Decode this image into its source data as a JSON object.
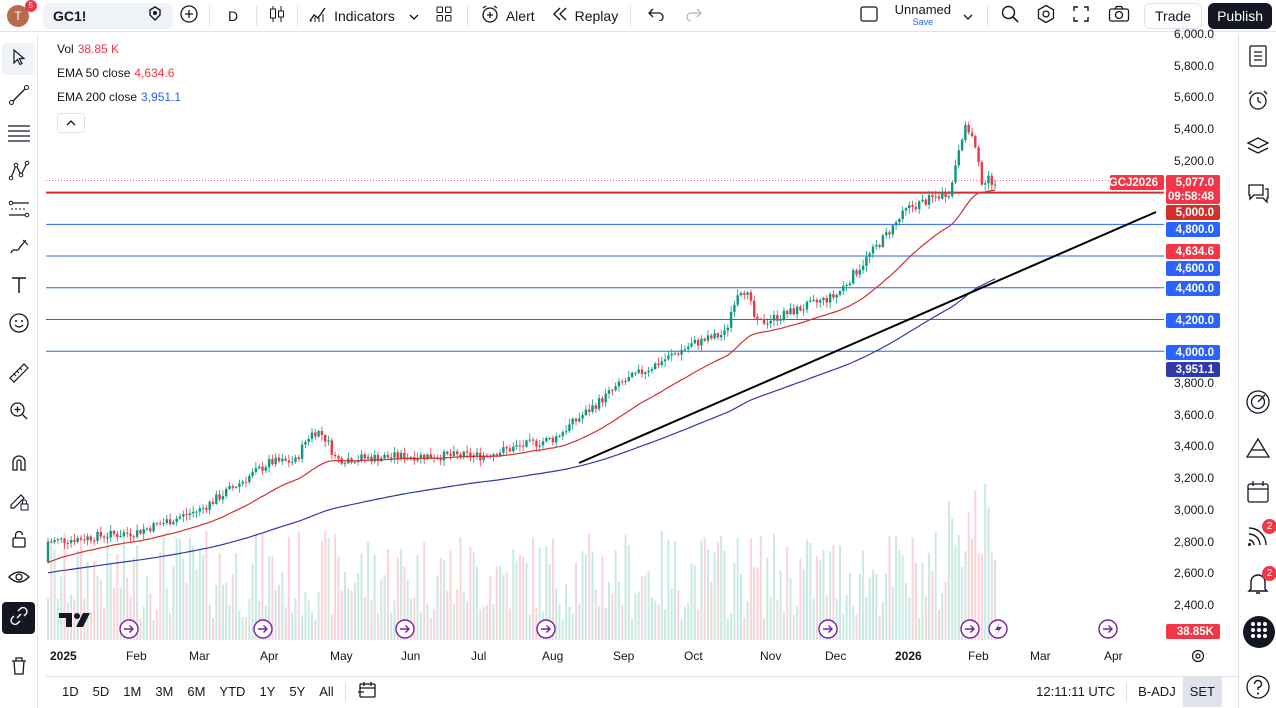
{
  "topbar": {
    "avatar_letter": "T",
    "avatar_badge": "5",
    "symbol": "GC1!",
    "interval": "D",
    "indicators_label": "Indicators",
    "alert_label": "Alert",
    "replay_label": "Replay",
    "layout_name": "Unnamed",
    "layout_save": "Save",
    "trade_label": "Trade",
    "publish_label": "Publish"
  },
  "legend": {
    "vol_label": "Vol",
    "vol_value": "38.85 K",
    "ema50_label": "EMA 50 close",
    "ema50_value": "4,634.6",
    "ema200_label": "EMA 200 close",
    "ema200_value": "3,951.1",
    "colors": {
      "vol": "#f23645",
      "ema50": "#f23645",
      "ema200": "#2962ff"
    }
  },
  "price_axis": {
    "ticks": [
      "6,000.0",
      "5,800.0",
      "5,600.0",
      "5,400.0",
      "5,200.0",
      "3,800.0",
      "3,600.0",
      "3,400.0",
      "3,200.0",
      "3,000.0",
      "2,800.0",
      "2,600.0",
      "2,400.0"
    ],
    "labels": {
      "symbol_tag": "GCJ2026",
      "last_price": "5,077.0",
      "countdown": "09:58:48",
      "level_5000": "5,000.0",
      "level_4800": "4,800.0",
      "ema50": "4,634.6",
      "level_4600": "4,600.0",
      "level_4400": "4,400.0",
      "level_4200": "4,200.0",
      "level_4000": "4,000.0",
      "ema200": "3,951.1",
      "volume": "38.85K"
    }
  },
  "time_axis": {
    "labels": [
      "2025",
      "Feb",
      "Mar",
      "Apr",
      "May",
      "Jun",
      "Jul",
      "Aug",
      "Sep",
      "Oct",
      "Nov",
      "Dec",
      "2026",
      "Feb",
      "Mar",
      "Apr"
    ]
  },
  "bottombar": {
    "ranges": [
      "1D",
      "5D",
      "1M",
      "3M",
      "6M",
      "YTD",
      "1Y",
      "5Y",
      "All"
    ],
    "clock": "12:11:11 UTC",
    "badj": "B-ADJ",
    "set": "SET"
  },
  "sidebar": {
    "notif_badge_1": "2",
    "notif_badge_2": "2"
  },
  "colors": {
    "up": "#089981",
    "down": "#f23645",
    "h_red": "#d32f2f",
    "h_blue": "#2962ff"
  },
  "chart_data": {
    "type": "candlestick",
    "title": "",
    "horizontal_levels": [
      5000,
      4800,
      4600,
      4400,
      4200,
      4000
    ],
    "emphasized_level": 5000,
    "last_price": 5077.0,
    "ema50_last": 4634.6,
    "ema200_last": 3951.1,
    "x": [
      "2025-01",
      "2025-02",
      "2025-03",
      "2025-04",
      "2025-05",
      "2025-06",
      "2025-07",
      "2025-08",
      "2025-09",
      "2025-10",
      "2025-11",
      "2025-12",
      "2026-01",
      "2026-02"
    ],
    "close_monthly_approx": [
      2800,
      2860,
      3000,
      3300,
      3320,
      3340,
      3340,
      3450,
      3800,
      4050,
      4200,
      4350,
      4900,
      5077
    ],
    "ylim": [
      2350,
      6000
    ]
  }
}
